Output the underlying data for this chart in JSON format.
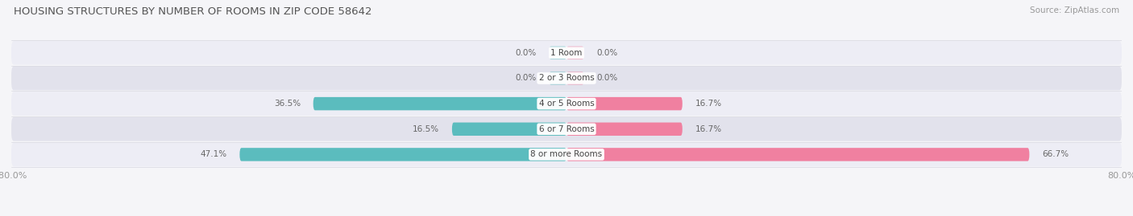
{
  "title": "HOUSING STRUCTURES BY NUMBER OF ROOMS IN ZIP CODE 58642",
  "source": "Source: ZipAtlas.com",
  "categories": [
    "1 Room",
    "2 or 3 Rooms",
    "4 or 5 Rooms",
    "6 or 7 Rooms",
    "8 or more Rooms"
  ],
  "owner_values": [
    0.0,
    0.0,
    36.5,
    16.5,
    47.1
  ],
  "renter_values": [
    0.0,
    0.0,
    16.7,
    16.7,
    66.7
  ],
  "owner_color": "#5bbcbe",
  "renter_color": "#f080a0",
  "label_color": "#666666",
  "center_label_color": "#444444",
  "title_color": "#555555",
  "source_color": "#999999",
  "axis_min": -80.0,
  "axis_max": 80.0,
  "row_colors": [
    "#ededf5",
    "#e2e2ec"
  ],
  "fig_bg": "#f5f5f8"
}
